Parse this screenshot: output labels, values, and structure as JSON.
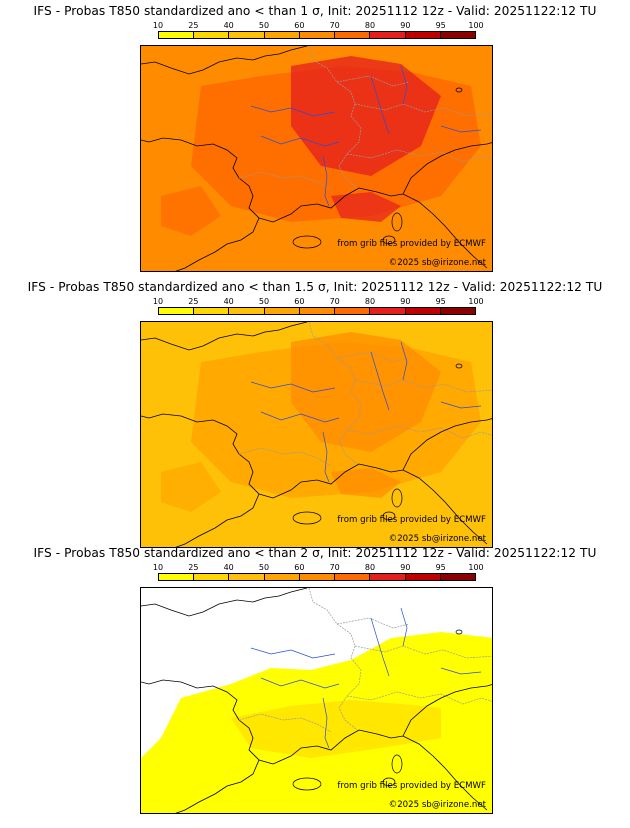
{
  "colorbar": {
    "ticks": [
      "10",
      "25",
      "40",
      "50",
      "60",
      "70",
      "80",
      "90",
      "95",
      "100"
    ],
    "colors": [
      "#ffff00",
      "#ffd700",
      "#ffc107",
      "#ffa500",
      "#ff8c00",
      "#ff6a00",
      "#e61e1e",
      "#c00000",
      "#8b0000"
    ]
  },
  "panels": [
    {
      "title": "IFS - Probas T850  standardized ano < than 1 σ, Init: 20251112 12z - Valid: 20251122:12 TU",
      "credit_line1": "from grib files provided by ECMWF",
      "credit_line2": "©2025 sb@irizone.net",
      "base_color": "#ff8c00",
      "level2_color": "#ff6a00",
      "level3_color": "#e61e1e"
    },
    {
      "title": "IFS - Probas T850  standardized ano < than 1.5 σ, Init: 20251112 12z - Valid: 20251122:12 TU",
      "credit_line1": "from grib files provided by ECMWF",
      "credit_line2": "©2025 sb@irizone.net",
      "base_color": "#ffc107",
      "level2_color": "#ffa500",
      "level3_color": "#ff8c00"
    },
    {
      "title": "IFS - Probas T850  standardized ano < than 2 σ, Init: 20251112 12z - Valid: 20251122:12 TU",
      "credit_line1": "from grib files provided by ECMWF",
      "credit_line2": "©2025 sb@irizone.net",
      "base_color": "#ffff00",
      "level2_color": "#ffd700",
      "level3_color": "#ffc107"
    }
  ]
}
